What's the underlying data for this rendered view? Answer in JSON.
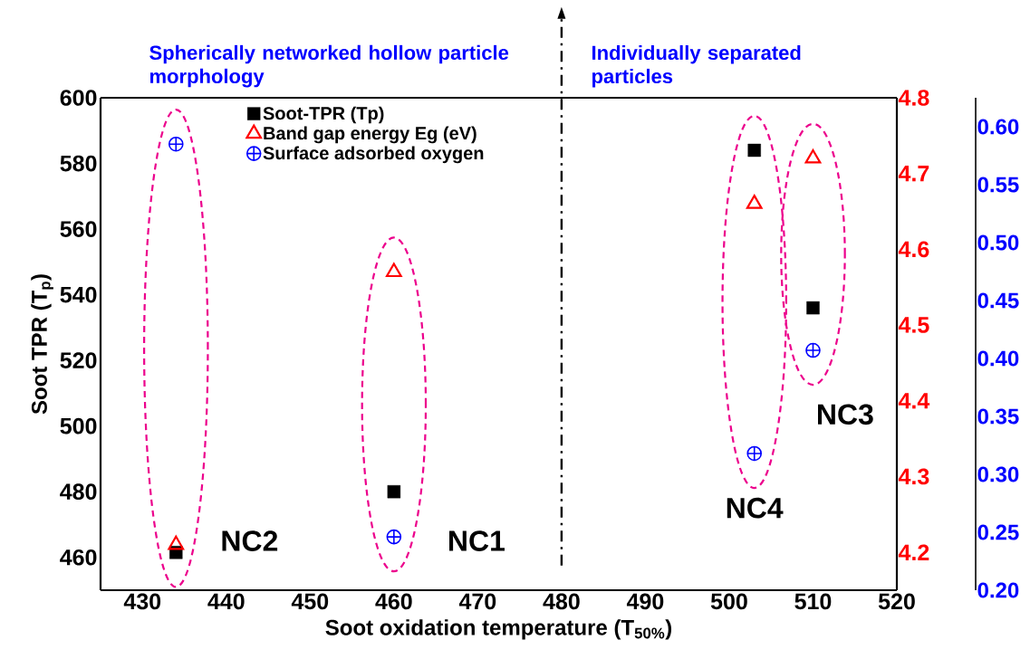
{
  "chart_data": {
    "type": "scatter",
    "xlabel": "Soot oxidation temperature (T$_{50%}$)",
    "ylabel": "Soot TPR (T$_{p}$)",
    "x": [
      434,
      460,
      503,
      510
    ],
    "series": [
      {
        "name": "Soot-TPR (Tp)",
        "color": "#000000",
        "marker": "square",
        "values": [
          461.5,
          480,
          584,
          536
        ]
      },
      {
        "name": "Band gap energy Eg (eV)",
        "color": "#ff0000",
        "marker": "triangle",
        "axis": "y2",
        "values": [
          4.21,
          4.57,
          4.66,
          4.72
        ]
      },
      {
        "name": "Surface adsorbed oxygen",
        "color": "#0000ff",
        "marker": "cross",
        "axis": "y3",
        "values": [
          0.585,
          0.246,
          0.318,
          0.407
        ]
      }
    ],
    "xlim": [
      425,
      520
    ],
    "xticks": [
      430,
      440,
      450,
      460,
      470,
      480,
      490,
      500,
      510,
      520
    ],
    "ylim": [
      450,
      600
    ],
    "yticks": [
      460,
      480,
      500,
      520,
      540,
      560,
      580,
      600
    ],
    "y2lim": [
      4.15,
      4.8
    ],
    "y2ticks": [
      4.2,
      4.3,
      4.4,
      4.5,
      4.6,
      4.7,
      4.8
    ],
    "y3lim": [
      0.2,
      0.625
    ],
    "y3ticks": [
      {
        "value": 0.2,
        "label": "0.20"
      },
      0.25,
      {
        "value": 0.3,
        "label": "0.30"
      },
      0.35,
      {
        "value": 0.4,
        "label": "0.40"
      },
      0.45,
      {
        "value": 0.5,
        "label": "0.50"
      },
      0.55,
      {
        "value": 0.6,
        "label": "0.60"
      }
    ],
    "ref_lines": [
      {
        "axis": "x",
        "value": 480,
        "line_style": "dashed",
        "color": "#000000"
      }
    ],
    "annotations": [
      "Spherically networked hollow particle morphology",
      "Individually separated particles",
      "NC2",
      "NC1",
      "NC4",
      "NC3"
    ],
    "legend": "top",
    "grid": false
  }
}
